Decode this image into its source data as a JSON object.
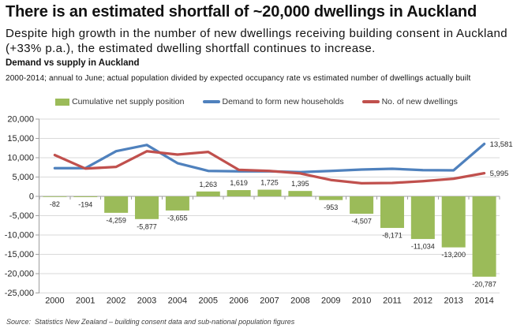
{
  "page": {
    "title": "There is an estimated shortfall of ~20,000 dwellings in Auckland",
    "subtitle": "Despite high growth in the number of new dwellings receiving building consent in Auckland (+33% p.a.), the estimated dwelling shortfall continues to increase.",
    "source": "Source:  Statistics New Zealand – building consent data and sub-national population figures"
  },
  "chart_data": {
    "type": "combo-bar-line",
    "title": "Demand vs supply in Auckland",
    "subtitle": "2000-2014; annual to June; actual population divided by expected occupancy rate vs estimated number of dwellings actually built",
    "categories": [
      "2000",
      "2001",
      "2002",
      "2003",
      "2004",
      "2005",
      "2006",
      "2007",
      "2008",
      "2009",
      "2010",
      "2011",
      "2012",
      "2013",
      "2014"
    ],
    "series": [
      {
        "name": "Cumulative net supply position",
        "type": "bar",
        "color": "#9BBB59",
        "values": [
          -82,
          -194,
          -4259,
          -5877,
          -3655,
          1263,
          1619,
          1725,
          1395,
          -953,
          -4507,
          -8171,
          -11034,
          -13200,
          -20787
        ],
        "data_labels": "all"
      },
      {
        "name": "Demand to form new households",
        "type": "line",
        "color": "#4F81BD",
        "values": [
          7300,
          7300,
          11700,
          13300,
          8600,
          6600,
          6500,
          6470,
          6270,
          6600,
          6940,
          7140,
          6800,
          6735,
          13581
        ],
        "data_labels": "last",
        "last_label": "13,581"
      },
      {
        "name": "No. of new dwellings",
        "type": "line",
        "color": "#C0504D",
        "values": [
          10700,
          7188,
          7635,
          11682,
          10822,
          11518,
          6856,
          6576,
          5940,
          4252,
          3386,
          3476,
          3937,
          4569,
          5995
        ],
        "data_labels": "last",
        "last_label": "5,995"
      }
    ],
    "ylim": [
      -25000,
      20000
    ],
    "ytick_step": 5000,
    "grid_color": "#d9d9d9",
    "axis_color": "#9e9e9e",
    "label_color": "#262626",
    "legend_position": "top"
  }
}
